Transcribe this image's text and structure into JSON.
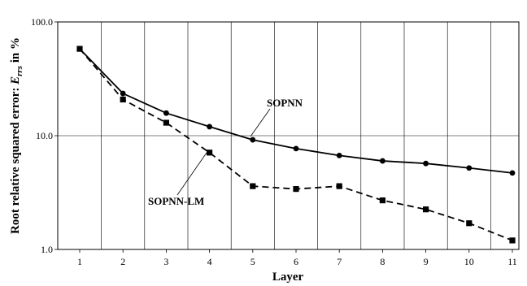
{
  "chart_data": {
    "type": "line",
    "x": [
      1,
      2,
      3,
      4,
      5,
      6,
      7,
      8,
      9,
      10,
      11
    ],
    "xlabel": "Layer",
    "ylabel_prefix": "Root relative squared error: ",
    "ylabel_symbol": "E",
    "ylabel_subscript": "rrs",
    "ylabel_suffix": " in %",
    "yscale": "log",
    "ylim": [
      1.0,
      100.0
    ],
    "y_ticks": [
      "1.0",
      "10.0",
      "100.0"
    ],
    "x_ticks": [
      "1",
      "2",
      "3",
      "4",
      "5",
      "6",
      "7",
      "8",
      "9",
      "10",
      "11"
    ],
    "grid": "vertical lines at each layer",
    "series": [
      {
        "name": "SOPNN",
        "line_style": "solid",
        "marker": "circle",
        "values": [
          58.0,
          23.5,
          15.8,
          12.0,
          9.2,
          7.7,
          6.7,
          6.0,
          5.7,
          5.2,
          4.7
        ]
      },
      {
        "name": "SOPNN-LM",
        "line_style": "dashed",
        "marker": "square",
        "values": [
          58.0,
          20.8,
          13.0,
          7.1,
          3.6,
          3.4,
          3.6,
          2.7,
          2.25,
          1.7,
          1.2
        ]
      }
    ]
  }
}
